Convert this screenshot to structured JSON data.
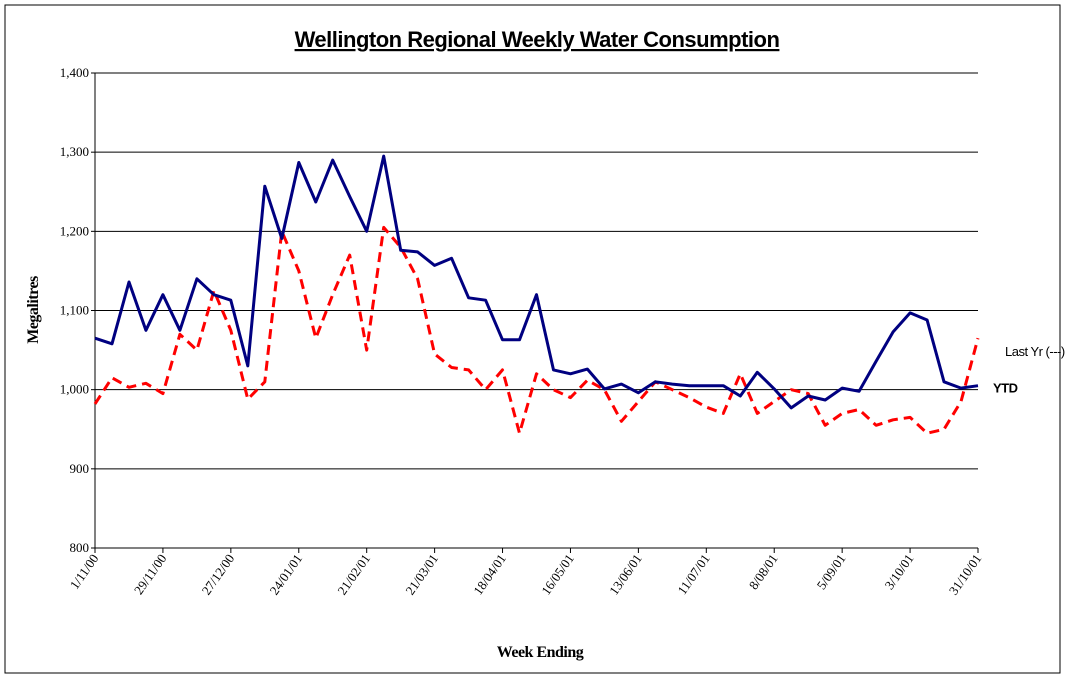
{
  "chart_data": {
    "type": "line",
    "title": "Wellington Regional Weekly Water Consumption",
    "y_label": "Megalitres",
    "x_label": "Week Ending",
    "categories": [
      "1/11/00",
      null,
      null,
      null,
      "29/11/00",
      null,
      null,
      null,
      "27/12/00",
      null,
      null,
      null,
      "24/01/01",
      null,
      null,
      null,
      "21/02/01",
      null,
      null,
      null,
      "21/03/01",
      null,
      null,
      null,
      "18/04/01",
      null,
      null,
      null,
      "16/05/01",
      null,
      null,
      null,
      "13/06/01",
      null,
      null,
      null,
      "11/07/01",
      null,
      null,
      null,
      "8/08/01",
      null,
      null,
      null,
      "5/09/01",
      null,
      null,
      null,
      "3/10/01",
      null,
      null,
      null,
      "31/10/01"
    ],
    "series": [
      {
        "name": "Last Yr (---)",
        "color": "#ff0000",
        "dashed": true,
        "values": [
          982,
          1015,
          1003,
          1008,
          995,
          1070,
          1050,
          1125,
          1075,
          988,
          1010,
          1200,
          1150,
          1065,
          1120,
          1170,
          1050,
          1205,
          1180,
          1140,
          1045,
          1028,
          1025,
          1000,
          1025,
          945,
          1020,
          1000,
          990,
          1012,
          1000,
          960,
          985,
          1010,
          1000,
          990,
          978,
          970,
          1020,
          970,
          985,
          1000,
          995,
          955,
          970,
          975,
          955,
          962,
          965,
          945,
          950,
          985,
          1065
        ]
      },
      {
        "name": "YTD",
        "color": "#000080",
        "dashed": false,
        "values": [
          1065,
          1058,
          1136,
          1075,
          1120,
          1075,
          1140,
          1120,
          1113,
          1030,
          1257,
          1191,
          1287,
          1237,
          1290,
          1244,
          1200,
          1295,
          1176,
          1174,
          1157,
          1166,
          1116,
          1113,
          1063,
          1063,
          1120,
          1025,
          1020,
          1026,
          1001,
          1007,
          996,
          1010,
          1007,
          1005,
          1005,
          1005,
          992,
          1022,
          1001,
          977,
          992,
          987,
          1002,
          998,
          1036,
          1073,
          1097,
          1088,
          1010,
          1002,
          1005
        ]
      }
    ],
    "ylim": [
      800,
      1400
    ],
    "yticks": [
      800,
      900,
      {
        "value": 1000,
        "label": "1,000"
      },
      {
        "value": 1100,
        "label": "1,100"
      },
      {
        "value": 1200,
        "label": "1,200"
      },
      {
        "value": 1300,
        "label": "1,300"
      },
      {
        "value": 1400,
        "label": "1,400"
      }
    ],
    "grid": true
  }
}
